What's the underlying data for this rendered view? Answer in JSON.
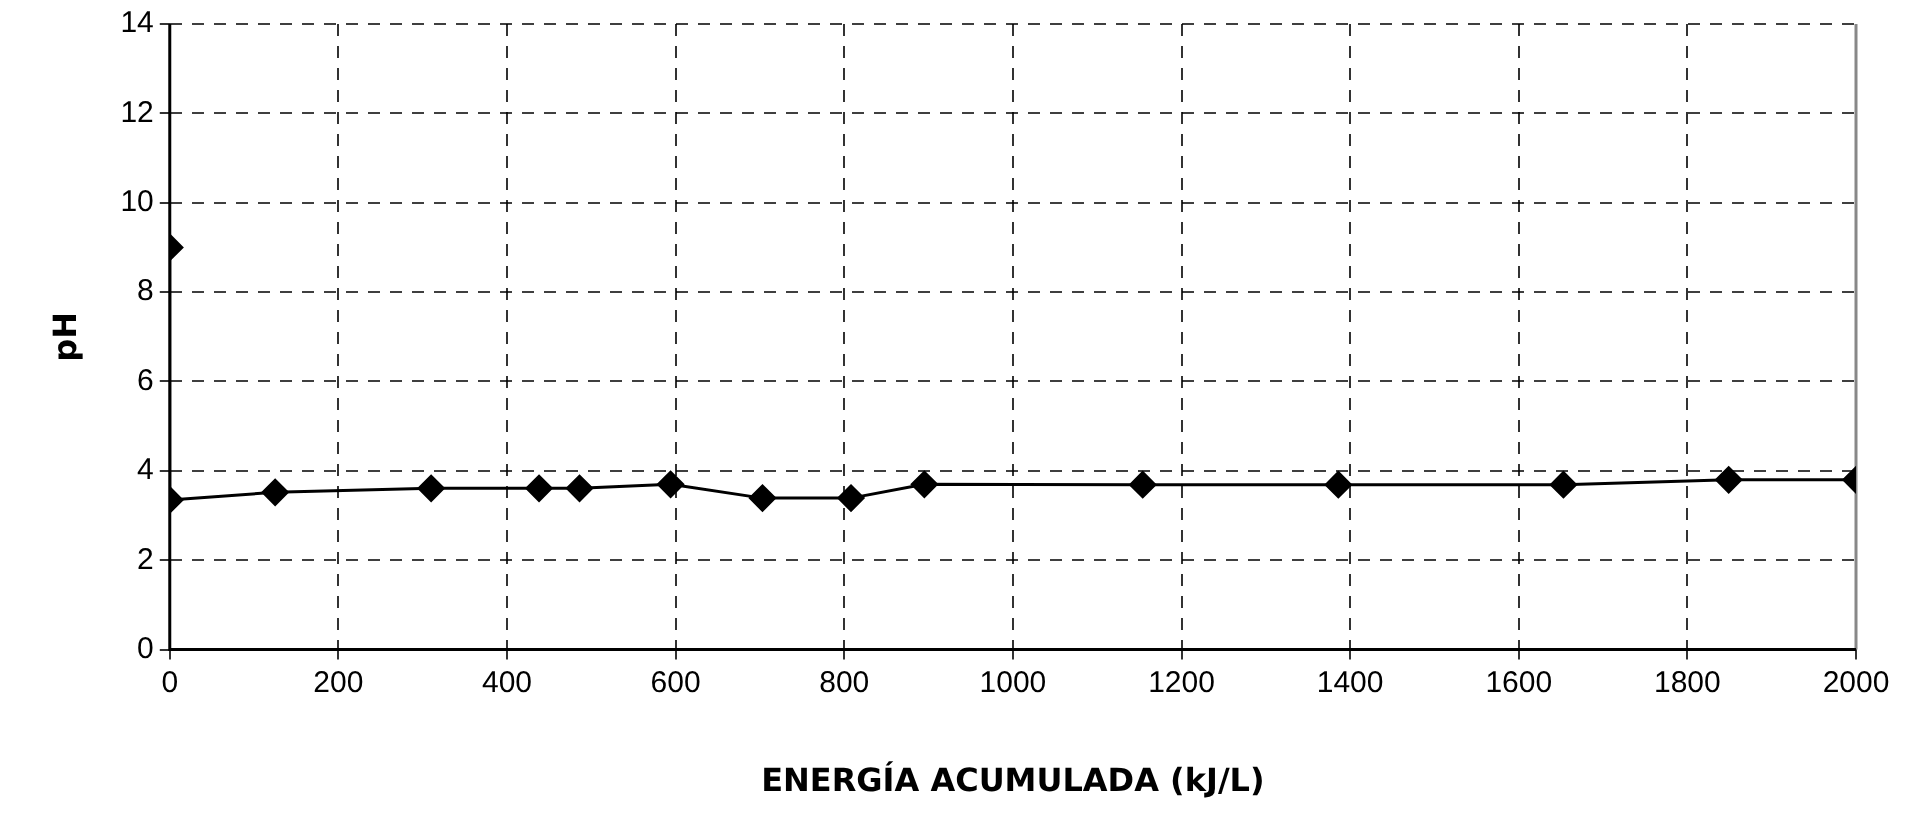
{
  "chart_data": {
    "type": "line",
    "xlabel": "ENERGÍA ACUMULADA (kJ/L)",
    "ylabel": "pH",
    "x": [
      0,
      0,
      125,
      310,
      438,
      486,
      594,
      703,
      808,
      895,
      1154,
      1386,
      1653,
      1849,
      2000
    ],
    "series": [
      {
        "color": "#000000",
        "values": [
          9.0,
          3.35,
          3.52,
          3.61,
          3.61,
          3.61,
          3.7,
          3.39,
          3.39,
          3.7,
          3.69,
          3.69,
          3.69,
          3.8,
          3.8
        ]
      }
    ],
    "xlim": [
      0,
      2000
    ],
    "xticks": [
      0,
      200,
      400,
      600,
      800,
      1000,
      1200,
      1400,
      1600,
      1800,
      2000
    ],
    "ylim": [
      0,
      14
    ],
    "yticks": [
      0,
      2,
      4,
      6,
      8,
      10,
      12,
      14
    ],
    "grid": true,
    "legend": false,
    "marker": "diamond",
    "line_style": "solid"
  }
}
